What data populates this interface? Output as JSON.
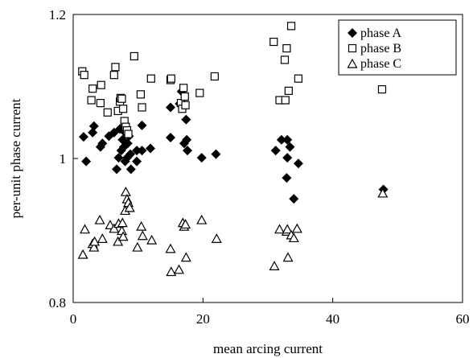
{
  "chart_data": {
    "type": "scatter",
    "xlabel": "mean arcing current",
    "ylabel": "per-unit phase current",
    "xlim": [
      0,
      60
    ],
    "ylim": [
      0.8,
      1.2
    ],
    "x_ticks": [
      0,
      20,
      40,
      60
    ],
    "y_ticks": [
      0.8,
      1,
      1.2
    ],
    "x_tick_labels": [
      "0",
      "20",
      "40",
      "60"
    ],
    "y_tick_labels": [
      "0.8",
      "1",
      "1.2"
    ],
    "grid": false,
    "legend_position": "top-right",
    "series": [
      {
        "name": "phase A",
        "marker": "diamond",
        "color": "#000000",
        "points": [
          [
            1.6,
            1.03
          ],
          [
            2.0,
            0.996
          ],
          [
            3.0,
            1.036
          ],
          [
            3.2,
            1.045
          ],
          [
            4.2,
            1.016
          ],
          [
            4.5,
            1.021
          ],
          [
            5.5,
            1.031
          ],
          [
            6.3,
            1.036
          ],
          [
            6.7,
            0.985
          ],
          [
            7.0,
            1.001
          ],
          [
            7.2,
            1.041
          ],
          [
            7.4,
            1.011
          ],
          [
            7.6,
            1.026
          ],
          [
            7.8,
            1.016
          ],
          [
            8.0,
            0.996
          ],
          [
            8.0,
            1.036
          ],
          [
            8.3,
            1.001
          ],
          [
            8.4,
            1.021
          ],
          [
            8.6,
            1.031
          ],
          [
            8.8,
            1.006
          ],
          [
            8.9,
            0.985
          ],
          [
            9.8,
            1.011
          ],
          [
            9.8,
            0.996
          ],
          [
            10.6,
            1.046
          ],
          [
            10.6,
            1.011
          ],
          [
            11.9,
            1.014
          ],
          [
            15.0,
            1.071
          ],
          [
            15.0,
            1.029
          ],
          [
            16.4,
            1.076
          ],
          [
            16.7,
            1.093
          ],
          [
            17.1,
            1.021
          ],
          [
            17.4,
            1.054
          ],
          [
            17.5,
            1.026
          ],
          [
            17.6,
            1.011
          ],
          [
            19.8,
            1.001
          ],
          [
            22.0,
            1.006
          ],
          [
            31.2,
            1.011
          ],
          [
            32.1,
            1.026
          ],
          [
            32.9,
            0.973
          ],
          [
            33.0,
            1.001
          ],
          [
            33.0,
            1.026
          ],
          [
            33.4,
            1.016
          ],
          [
            34.0,
            0.944
          ],
          [
            34.7,
            0.993
          ],
          [
            47.8,
            0.957
          ]
        ]
      },
      {
        "name": "phase B",
        "marker": "square",
        "color": "#000000",
        "points": [
          [
            1.4,
            1.121
          ],
          [
            1.7,
            1.116
          ],
          [
            2.8,
            1.081
          ],
          [
            3.0,
            1.097
          ],
          [
            4.2,
            1.077
          ],
          [
            4.3,
            1.102
          ],
          [
            5.3,
            1.064
          ],
          [
            6.3,
            1.116
          ],
          [
            6.5,
            1.127
          ],
          [
            6.9,
            1.066
          ],
          [
            7.2,
            1.079
          ],
          [
            7.3,
            1.084
          ],
          [
            7.5,
            1.083
          ],
          [
            7.7,
            1.069
          ],
          [
            7.9,
            1.052
          ],
          [
            8.1,
            1.044
          ],
          [
            8.3,
            1.039
          ],
          [
            8.5,
            1.034
          ],
          [
            9.4,
            1.142
          ],
          [
            10.4,
            1.089
          ],
          [
            10.6,
            1.071
          ],
          [
            12.0,
            1.111
          ],
          [
            15.0,
            1.109
          ],
          [
            15.1,
            1.111
          ],
          [
            16.6,
            1.077
          ],
          [
            16.8,
            1.069
          ],
          [
            17.0,
            1.098
          ],
          [
            17.2,
            1.086
          ],
          [
            17.3,
            1.074
          ],
          [
            19.5,
            1.091
          ],
          [
            21.8,
            1.114
          ],
          [
            30.9,
            1.162
          ],
          [
            31.8,
            1.081
          ],
          [
            32.6,
            1.137
          ],
          [
            32.7,
            1.081
          ],
          [
            32.9,
            1.153
          ],
          [
            33.2,
            1.094
          ],
          [
            33.6,
            1.184
          ],
          [
            34.7,
            1.111
          ],
          [
            47.6,
            1.096
          ]
        ]
      },
      {
        "name": "phase C",
        "marker": "triangle",
        "color": "#000000",
        "points": [
          [
            1.5,
            0.867
          ],
          [
            1.8,
            0.902
          ],
          [
            3.0,
            0.882
          ],
          [
            3.2,
            0.877
          ],
          [
            3.3,
            0.885
          ],
          [
            4.1,
            0.915
          ],
          [
            4.5,
            0.889
          ],
          [
            5.7,
            0.908
          ],
          [
            6.3,
            0.903
          ],
          [
            6.9,
            0.885
          ],
          [
            7.0,
            0.91
          ],
          [
            7.5,
            0.9
          ],
          [
            7.6,
            0.911
          ],
          [
            7.7,
            0.892
          ],
          [
            8.0,
            0.928
          ],
          [
            8.1,
            0.954
          ],
          [
            8.3,
            0.944
          ],
          [
            8.5,
            0.939
          ],
          [
            8.7,
            0.932
          ],
          [
            9.9,
            0.877
          ],
          [
            10.5,
            0.906
          ],
          [
            10.7,
            0.893
          ],
          [
            12.1,
            0.887
          ],
          [
            15.0,
            0.875
          ],
          [
            15.1,
            0.843
          ],
          [
            16.3,
            0.846
          ],
          [
            16.9,
            0.911
          ],
          [
            17.1,
            0.906
          ],
          [
            17.3,
            0.909
          ],
          [
            17.4,
            0.863
          ],
          [
            19.8,
            0.915
          ],
          [
            22.1,
            0.889
          ],
          [
            31.0,
            0.851
          ],
          [
            31.8,
            0.902
          ],
          [
            32.9,
            0.899
          ],
          [
            33.0,
            0.902
          ],
          [
            33.1,
            0.863
          ],
          [
            33.6,
            0.894
          ],
          [
            34.0,
            0.89
          ],
          [
            34.5,
            0.903
          ],
          [
            47.7,
            0.952
          ]
        ]
      }
    ]
  }
}
